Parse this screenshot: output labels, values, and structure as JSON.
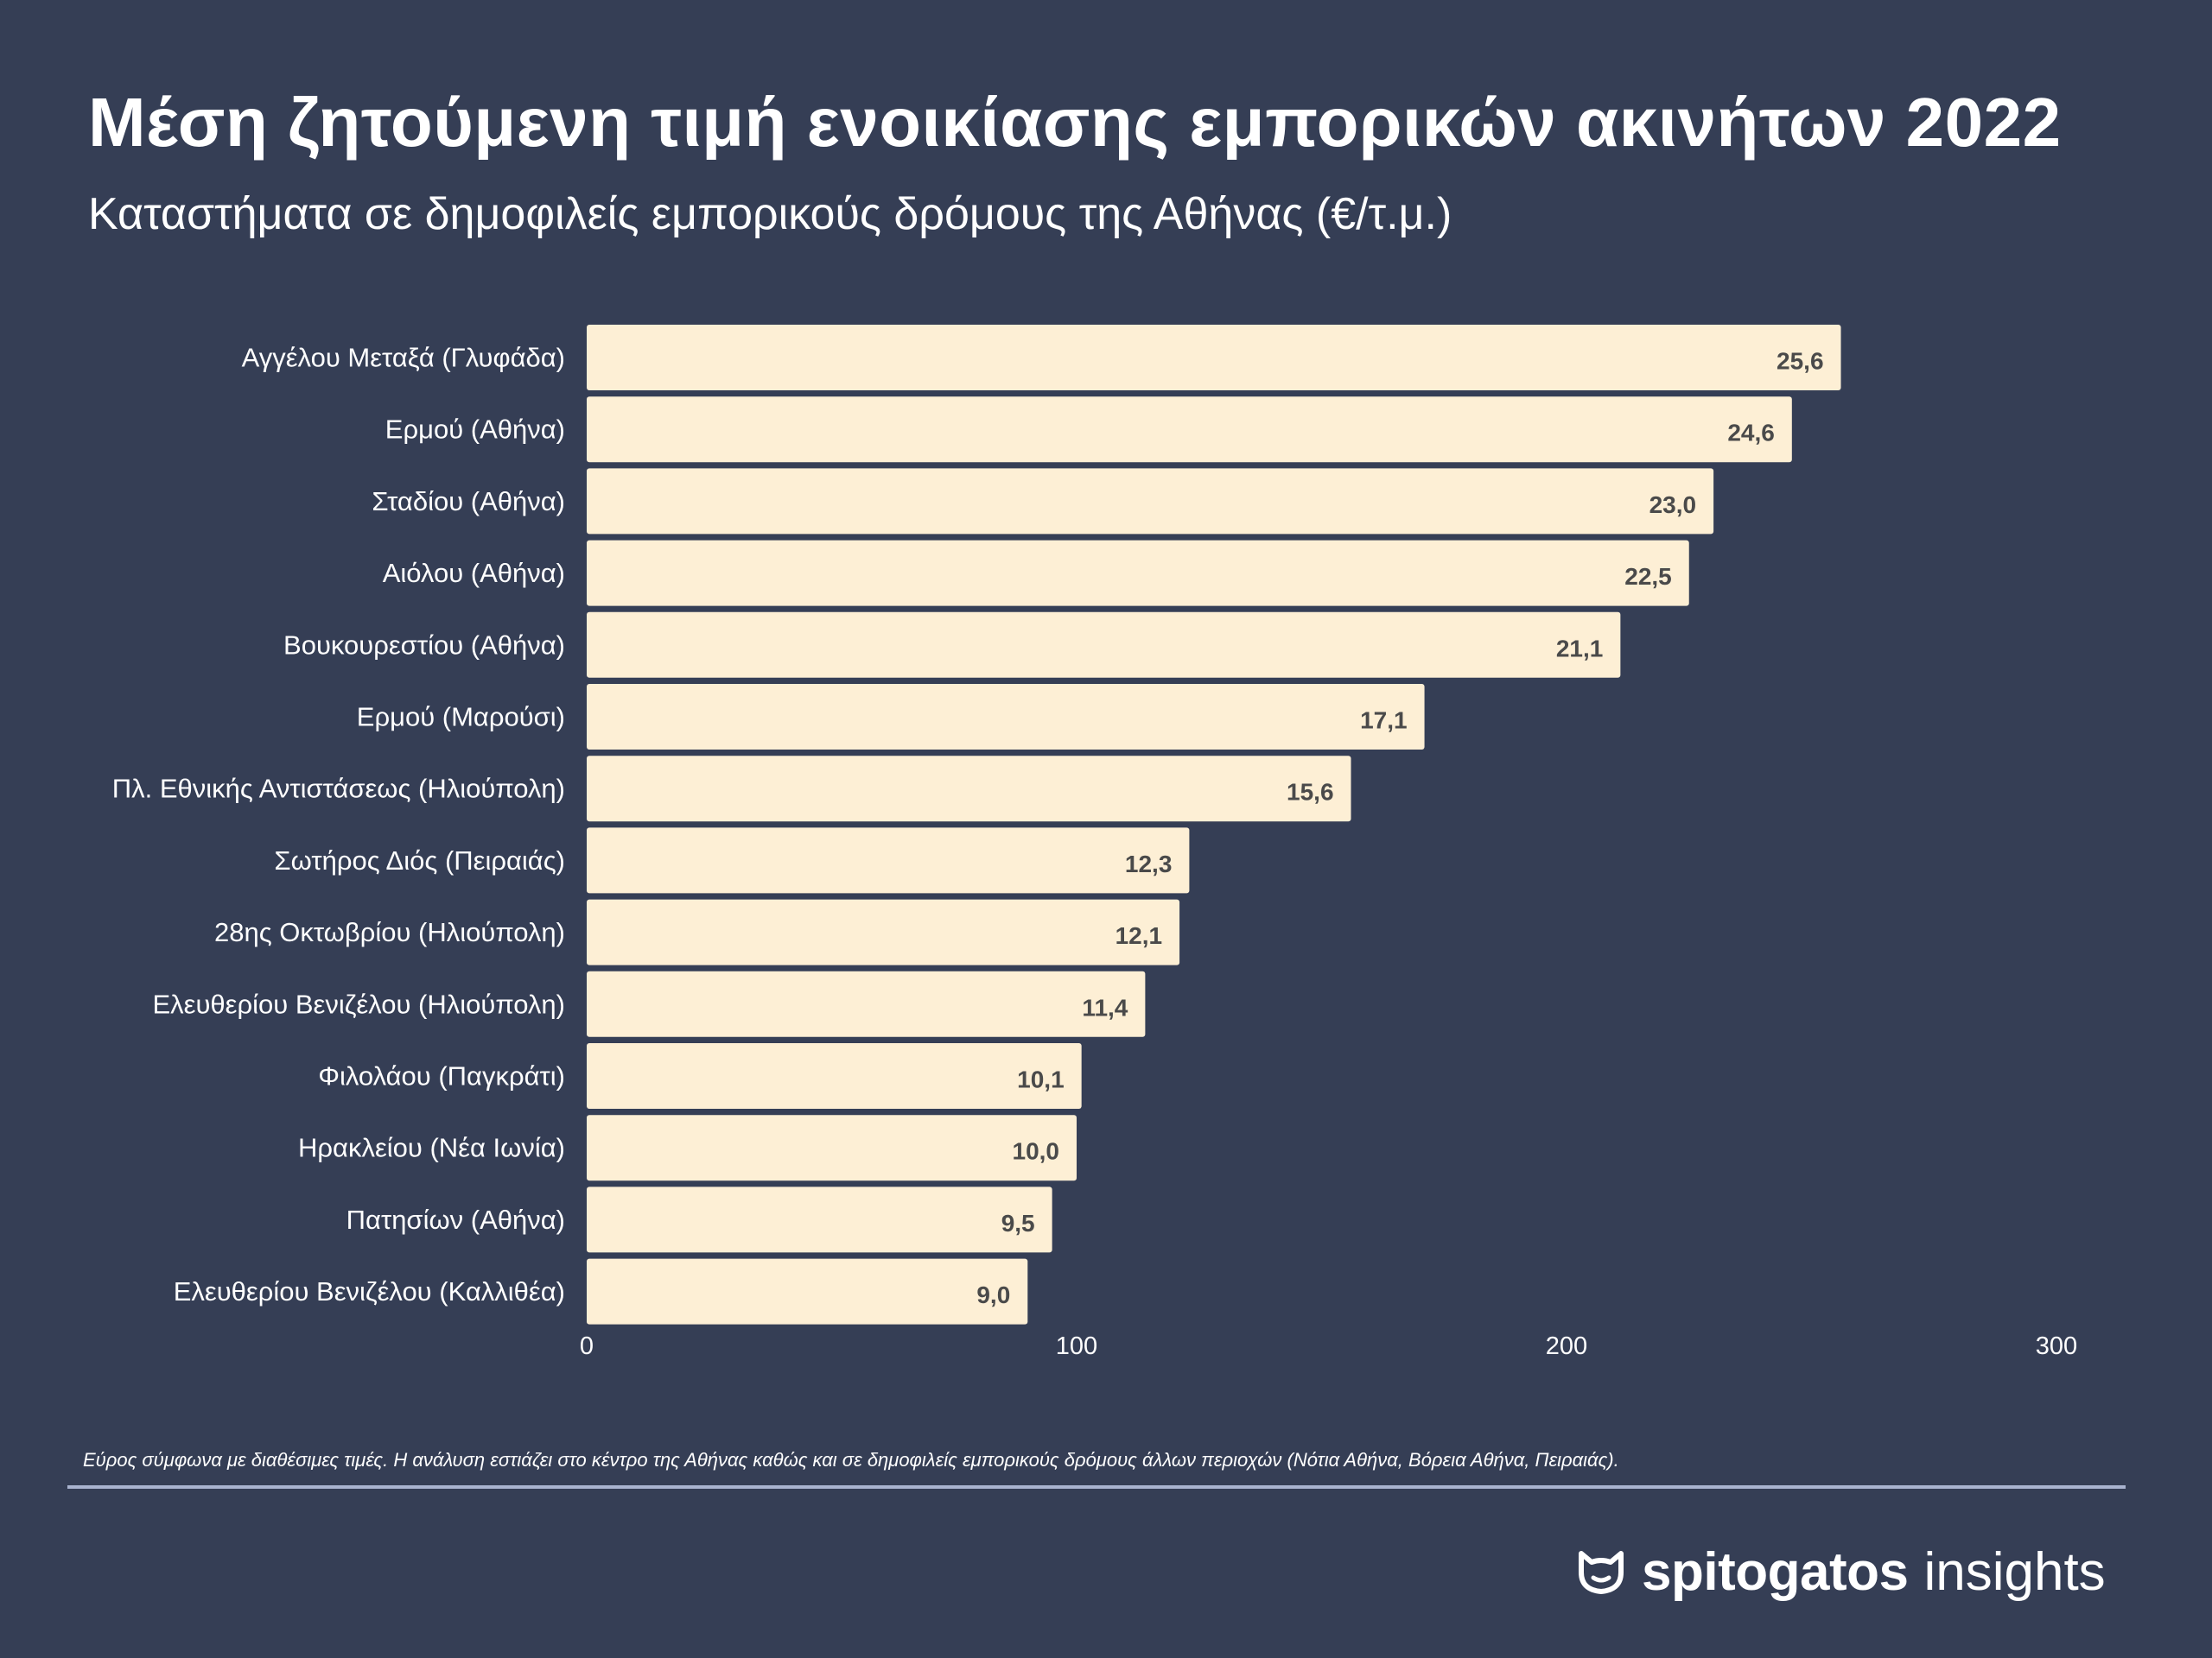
{
  "colors": {
    "background": "#353e55",
    "bar": "#fdefd5",
    "bar_label": "#4a4a4a",
    "text": "#ffffff",
    "divider": "#a9b3cf"
  },
  "chart_data": {
    "type": "bar",
    "orientation": "horizontal",
    "title": "Μέση ζητούμενη τιμή ενοικίασης εμπορικών ακινήτων 2022",
    "subtitle": "Καταστήματα σε δημοφιλείς εμπορικούς δρόμους της Αθήνας (€/τ.μ.)",
    "categories": [
      "Αγγέλου Μεταξά (Γλυφάδα)",
      "Ερμού (Αθήνα)",
      "Σταδίου (Αθήνα)",
      "Αιόλου (Αθήνα)",
      "Βουκουρεστίου (Αθήνα)",
      "Ερμού (Μαρούσι)",
      "Πλ. Εθνικής Αντιστάσεως (Ηλιούπολη)",
      "Σωτήρος Διός (Πειραιάς)",
      "28ης Οκτωβρίου (Ηλιούπολη)",
      "Ελευθερίου Βενιζέλου (Ηλιούπολη)",
      "Φιλολάου (Παγκράτι)",
      "Ηρακλείου (Νέα Ιωνία)",
      "Πατησίων (Αθήνα)",
      "Ελευθερίου Βενιζέλου (Καλλιθέα)"
    ],
    "bar_extent": [
      256,
      246,
      230,
      225,
      211,
      171,
      156,
      123,
      121,
      114,
      101,
      100,
      95,
      90
    ],
    "data_labels": [
      "25,6",
      "24,6",
      "23,0",
      "22,5",
      "21,1",
      "17,1",
      "15,6",
      "12,3",
      "12,1",
      "11,4",
      "10,1",
      "10,0",
      "9,5",
      "9,0"
    ],
    "xlim": [
      0,
      300
    ],
    "x_ticks": [
      "0",
      "100",
      "200",
      "300"
    ],
    "grid": false,
    "legend": "none"
  },
  "footnote": "Εύρος σύμφωνα με διαθέσιμες τιμές. Η ανάλυση εστιάζει στο κέντρο της Αθήνας καθώς και σε δημοφιλείς εμπορικούς δρόμους άλλων περιοχών (Νότια Αθήνα, Βόρεια Αθήνα, Πειραιάς).",
  "brand": {
    "logo_icon": "cat-head-icon",
    "name": "spitogatos",
    "suffix": "insights"
  }
}
